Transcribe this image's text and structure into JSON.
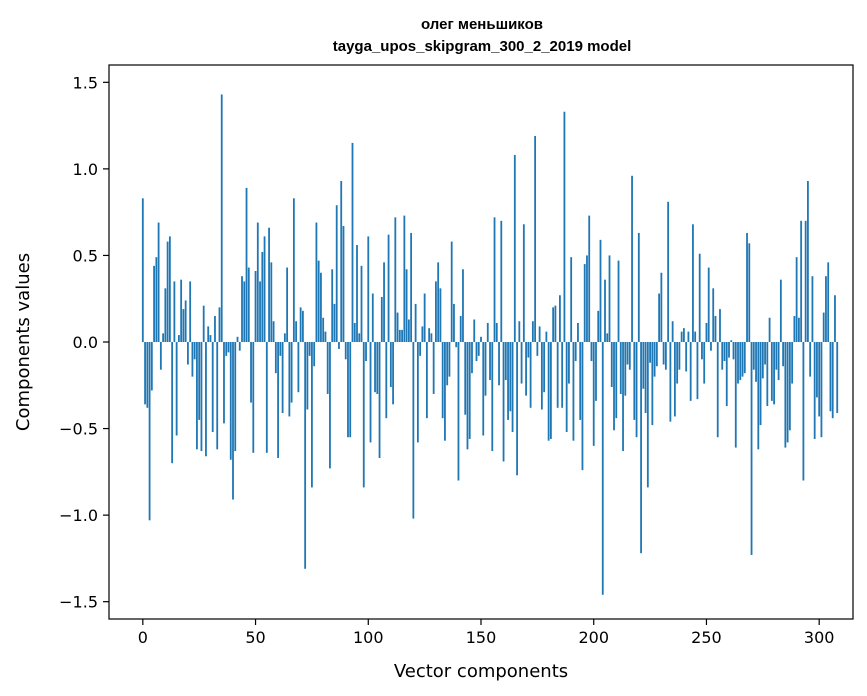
{
  "chart_data": {
    "type": "bar",
    "title": "олег меньшиков",
    "subtitle": "tayga_upos_skipgram_300_2_2019 model",
    "xlabel": "Vector components",
    "ylabel": "Components values",
    "xlim": [
      -15,
      315
    ],
    "ylim": [
      -1.6,
      1.6
    ],
    "xticks": [
      0,
      50,
      100,
      150,
      200,
      250,
      300
    ],
    "yticks": [
      -1.5,
      -1.0,
      -0.5,
      0.0,
      0.5,
      1.0,
      1.5
    ],
    "ytick_labels": [
      "−1.5",
      "−1.0",
      "−0.5",
      "0.0",
      "0.5",
      "1.0",
      "1.5"
    ],
    "grid": false,
    "color": "#1f77b4",
    "series": [
      {
        "values": [
          0.83,
          -0.36,
          -0.38,
          -1.03,
          -0.28,
          0.44,
          0.49,
          0.69,
          -0.16,
          0.05,
          0.31,
          0.58,
          0.61,
          -0.7,
          0.35,
          -0.54,
          0.04,
          0.36,
          0.19,
          0.24,
          -0.13,
          0.35,
          -0.2,
          -0.1,
          -0.62,
          -0.45,
          -0.63,
          0.21,
          -0.66,
          0.09,
          0.04,
          -0.52,
          0.15,
          -0.62,
          0.2,
          1.43,
          -0.47,
          -0.08,
          -0.06,
          -0.68,
          -0.91,
          -0.63,
          0.03,
          -0.05,
          0.38,
          0.35,
          0.89,
          0.43,
          -0.35,
          -0.64,
          0.41,
          0.69,
          0.35,
          0.52,
          0.61,
          -0.64,
          0.66,
          0.46,
          0.12,
          -0.18,
          -0.67,
          -0.08,
          -0.41,
          0.05,
          0.43,
          -0.43,
          -0.35,
          0.83,
          0.12,
          -0.29,
          0.2,
          0.18,
          -1.31,
          -0.39,
          -0.08,
          -0.84,
          -0.14,
          0.69,
          0.47,
          0.4,
          0.14,
          0.06,
          -0.3,
          -0.73,
          0.42,
          0.22,
          0.79,
          -0.04,
          0.93,
          0.67,
          -0.1,
          -0.55,
          -0.55,
          1.15,
          0.11,
          0.56,
          0.05,
          0.44,
          -0.84,
          -0.11,
          0.61,
          -0.58,
          0.28,
          -0.29,
          -0.3,
          -0.67,
          0.26,
          0.46,
          -0.44,
          0.62,
          -0.26,
          -0.36,
          0.72,
          0.17,
          0.07,
          0.07,
          0.73,
          0.42,
          0.13,
          0.63,
          -1.02,
          0.22,
          -0.58,
          -0.08,
          0.09,
          0.28,
          -0.44,
          0.08,
          0.05,
          -0.3,
          0.35,
          0.46,
          0.31,
          -0.44,
          -0.57,
          -0.25,
          -0.2,
          0.58,
          0.22,
          -0.03,
          -0.8,
          0.15,
          0.42,
          -0.42,
          -0.62,
          -0.56,
          -0.18,
          0.13,
          -0.11,
          -0.08,
          0.03,
          -0.54,
          -0.31,
          0.11,
          -0.22,
          -0.63,
          0.72,
          0.11,
          -0.25,
          0.7,
          -0.69,
          -0.22,
          -0.45,
          -0.4,
          -0.52,
          1.08,
          -0.77,
          0.12,
          -0.24,
          0.68,
          -0.31,
          -0.09,
          -0.38,
          0.12,
          1.19,
          -0.08,
          0.09,
          -0.39,
          -0.29,
          0.06,
          -0.57,
          -0.56,
          0.2,
          0.21,
          -0.38,
          0.27,
          -0.38,
          1.33,
          -0.52,
          -0.24,
          0.49,
          -0.57,
          -0.11,
          0.11,
          -0.45,
          -0.74,
          0.45,
          0.5,
          0.73,
          -0.11,
          -0.6,
          -0.34,
          0.18,
          0.59,
          -1.46,
          0.36,
          0.05,
          0.5,
          -0.26,
          -0.51,
          -0.44,
          0.47,
          -0.3,
          -0.63,
          -0.31,
          -0.13,
          -0.16,
          0.96,
          -0.45,
          -0.55,
          0.63,
          -1.22,
          -0.27,
          -0.41,
          -0.84,
          -0.12,
          -0.48,
          -0.2,
          -0.14,
          0.28,
          0.4,
          -0.13,
          -0.16,
          0.81,
          -0.46,
          0.12,
          -0.43,
          -0.24,
          -0.16,
          0.06,
          0.08,
          -0.17,
          0.06,
          -0.34,
          0.68,
          0.06,
          -0.33,
          0.51,
          -0.1,
          -0.24,
          0.11,
          0.43,
          -0.05,
          0.31,
          0.15,
          -0.55,
          0.19,
          -0.16,
          -0.11,
          -0.37,
          -0.09,
          0.01,
          -0.1,
          -0.61,
          -0.24,
          -0.22,
          -0.2,
          -0.18,
          0.63,
          0.57,
          -1.23,
          -0.16,
          -0.23,
          -0.62,
          -0.48,
          -0.21,
          -0.13,
          -0.37,
          0.14,
          -0.34,
          -0.36,
          -0.16,
          -0.22,
          0.36,
          -0.14,
          -0.61,
          -0.58,
          -0.51,
          -0.24,
          0.15,
          0.49,
          0.14,
          0.7,
          -0.8,
          0.7,
          0.93,
          -0.2,
          0.38,
          -0.56,
          -0.32,
          -0.43,
          -0.55,
          0.17,
          0.38,
          0.46,
          -0.4,
          -0.44,
          0.27,
          -0.41
        ]
      }
    ]
  }
}
